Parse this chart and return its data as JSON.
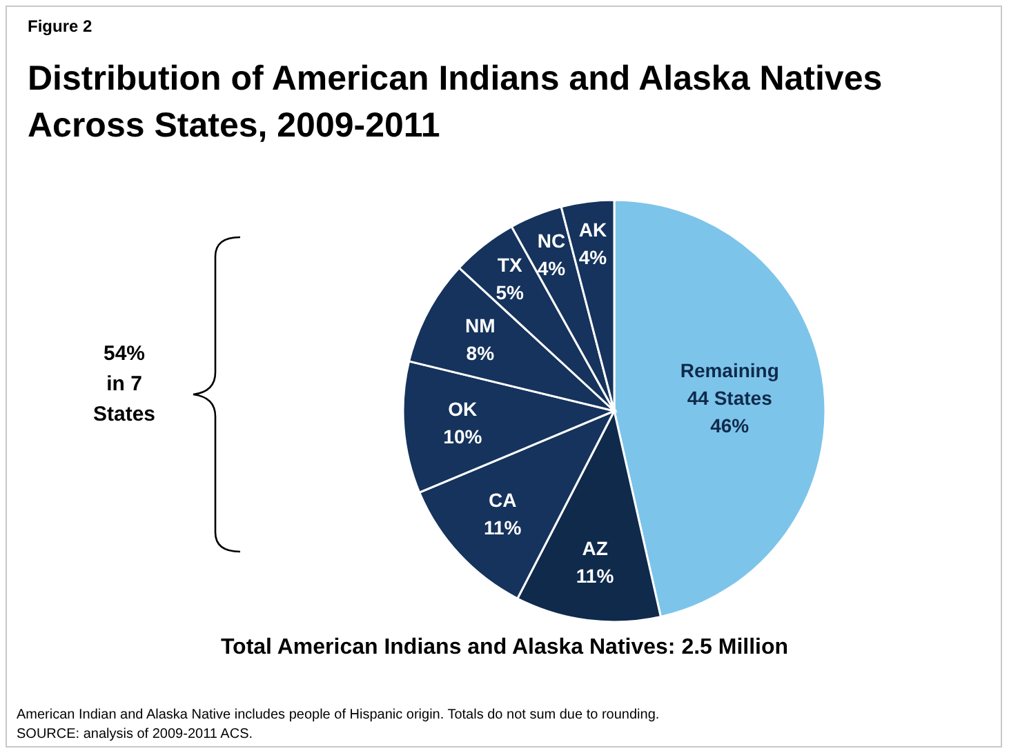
{
  "chart_data": {
    "type": "pie",
    "title": "Distribution of American Indians and Alaska Natives Across States, 2009-2011",
    "categories": [
      "Remaining 44 States",
      "AZ",
      "CA",
      "OK",
      "NM",
      "TX",
      "NC",
      "AK"
    ],
    "values": [
      46,
      11,
      11,
      10,
      8,
      5,
      4,
      4
    ],
    "value_labels": [
      "46%",
      "11%",
      "11%",
      "10%",
      "8%",
      "5%",
      "4%",
      "4%"
    ],
    "colors": [
      "#7dc4ea",
      "#0f2a4b",
      "#15335c",
      "#15335c",
      "#15335c",
      "#15335c",
      "#15335c",
      "#15335c"
    ],
    "annotations": [
      "Figure 2",
      "54% in 7 States",
      "Total American Indians and Alaska Natives: 2.5 Million",
      "American Indian and Alaska Native includes people of Hispanic origin. Totals do not sum due to rounding.",
      "SOURCE: analysis of 2009-2011 ACS."
    ],
    "legend": false
  }
}
